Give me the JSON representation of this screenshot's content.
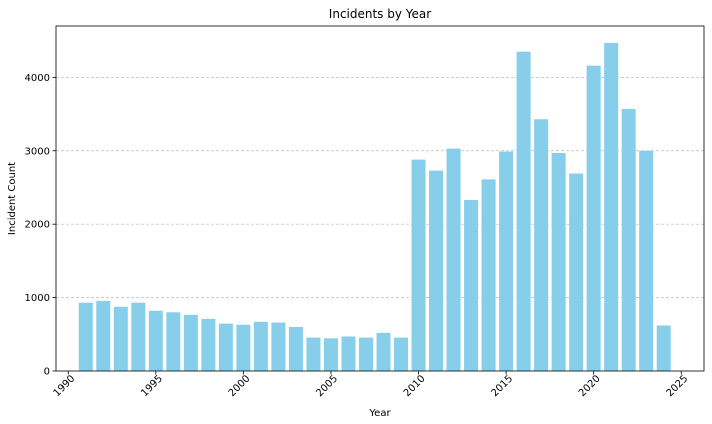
{
  "chart_data": {
    "type": "bar",
    "title": "Incidents by Year",
    "xlabel": "Year",
    "ylabel": "Incident Count",
    "x": [
      1991,
      1992,
      1993,
      1994,
      1995,
      1996,
      1997,
      1998,
      1999,
      2000,
      2001,
      2002,
      2003,
      2004,
      2005,
      2006,
      2007,
      2008,
      2009,
      2010,
      2011,
      2012,
      2013,
      2014,
      2015,
      2016,
      2017,
      2018,
      2019,
      2020,
      2021,
      2022,
      2023,
      2024
    ],
    "values": [
      930,
      955,
      875,
      930,
      820,
      800,
      765,
      710,
      645,
      630,
      670,
      660,
      600,
      455,
      445,
      470,
      455,
      520,
      455,
      2880,
      2730,
      3030,
      2330,
      2610,
      2990,
      4350,
      3430,
      2970,
      2690,
      4160,
      4470,
      3570,
      3000,
      620
    ],
    "xlim": [
      1989.3,
      1987.3
    ],
    "xticks": [
      1990,
      1995,
      2000,
      2005,
      2010,
      2015,
      2020,
      2025
    ],
    "xlim_range": [
      1989.3,
      2026.3
    ],
    "ylim": [
      0,
      4700
    ],
    "yticks": [
      0,
      1000,
      2000,
      3000,
      4000
    ],
    "grid": "y-dashed",
    "bar_color": "#87ceeb"
  }
}
